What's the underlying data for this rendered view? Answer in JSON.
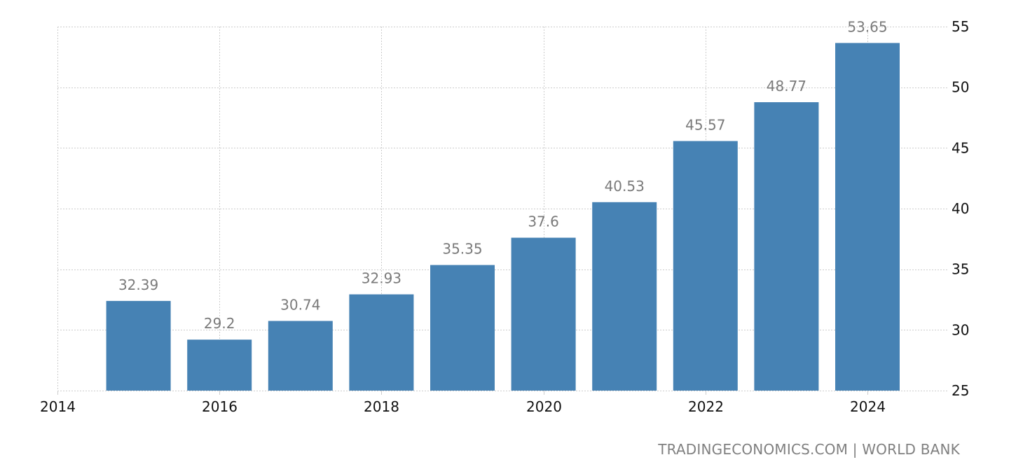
{
  "chart_data": {
    "type": "bar",
    "title": "",
    "xlabel": "",
    "ylabel": "",
    "categories": [
      "2015",
      "2016",
      "2017",
      "2018",
      "2019",
      "2020",
      "2021",
      "2022",
      "2023",
      "2024"
    ],
    "values": [
      32.39,
      29.2,
      30.74,
      32.93,
      35.35,
      37.6,
      40.53,
      45.57,
      48.77,
      53.65
    ],
    "data_labels": [
      "32.39",
      "29.2",
      "30.74",
      "32.93",
      "35.35",
      "37.6",
      "40.53",
      "45.57",
      "48.77",
      "53.65"
    ],
    "ylim": [
      25,
      55
    ],
    "y_ticks": [
      25,
      30,
      35,
      40,
      45,
      50,
      55
    ],
    "x_ticks": [
      "2014",
      "2016",
      "2018",
      "2020",
      "2022",
      "2024"
    ],
    "x_range": [
      2014,
      2025
    ],
    "y_axis_position": "right",
    "grid": true,
    "legend": null,
    "bar_color": "#4682b4"
  },
  "footer": {
    "credit": "TRADINGECONOMICS.COM | WORLD BANK"
  }
}
